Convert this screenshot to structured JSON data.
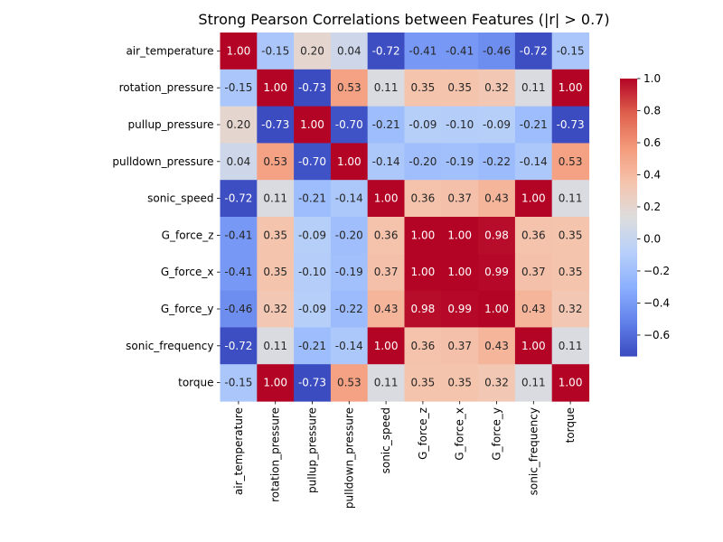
{
  "chart_data": {
    "type": "heatmap",
    "title": "Strong Pearson Correlations between Features (|r| > 0.7)",
    "xlabel": "",
    "ylabel": "",
    "colormap": "coolwarm",
    "vmin": -0.73,
    "vmax": 1.0,
    "grid": false,
    "legend": "colorbar-right",
    "rows": [
      "air_temperature",
      "rotation_pressure",
      "pullup_pressure",
      "pulldown_pressure",
      "sonic_speed",
      "G_force_z",
      "G_force_x",
      "G_force_y",
      "sonic_frequency",
      "torque"
    ],
    "columns": [
      "air_temperature",
      "rotation_pressure",
      "pullup_pressure",
      "pulldown_pressure",
      "sonic_speed",
      "G_force_z",
      "G_force_x",
      "G_force_y",
      "sonic_frequency",
      "torque"
    ],
    "values": [
      [
        1.0,
        -0.15,
        0.2,
        0.04,
        -0.72,
        -0.41,
        -0.41,
        -0.46,
        -0.72,
        -0.15
      ],
      [
        -0.15,
        1.0,
        -0.73,
        0.53,
        0.11,
        0.35,
        0.35,
        0.32,
        0.11,
        1.0
      ],
      [
        0.2,
        -0.73,
        1.0,
        -0.7,
        -0.21,
        -0.09,
        -0.1,
        -0.09,
        -0.21,
        -0.73
      ],
      [
        0.04,
        0.53,
        -0.7,
        1.0,
        -0.14,
        -0.2,
        -0.19,
        -0.22,
        -0.14,
        0.53
      ],
      [
        -0.72,
        0.11,
        -0.21,
        -0.14,
        1.0,
        0.36,
        0.37,
        0.43,
        1.0,
        0.11
      ],
      [
        -0.41,
        0.35,
        -0.09,
        -0.2,
        0.36,
        1.0,
        1.0,
        0.98,
        0.36,
        0.35
      ],
      [
        -0.41,
        0.35,
        -0.1,
        -0.19,
        0.37,
        1.0,
        1.0,
        0.99,
        0.37,
        0.35
      ],
      [
        -0.46,
        0.32,
        -0.09,
        -0.22,
        0.43,
        0.98,
        0.99,
        1.0,
        0.43,
        0.32
      ],
      [
        -0.72,
        0.11,
        -0.21,
        -0.14,
        1.0,
        0.36,
        0.37,
        0.43,
        1.0,
        0.11
      ],
      [
        -0.15,
        1.0,
        -0.73,
        0.53,
        0.11,
        0.35,
        0.35,
        0.32,
        0.11,
        1.0
      ]
    ],
    "colorbar_ticks": [
      1.0,
      0.8,
      0.6,
      0.4,
      0.2,
      0.0,
      -0.2,
      -0.4,
      -0.6
    ],
    "colorbar_tick_labels": [
      "1.0",
      "0.8",
      "0.6",
      "0.4",
      "0.2",
      "0.0",
      "−0.2",
      "−0.4",
      "−0.6"
    ]
  }
}
